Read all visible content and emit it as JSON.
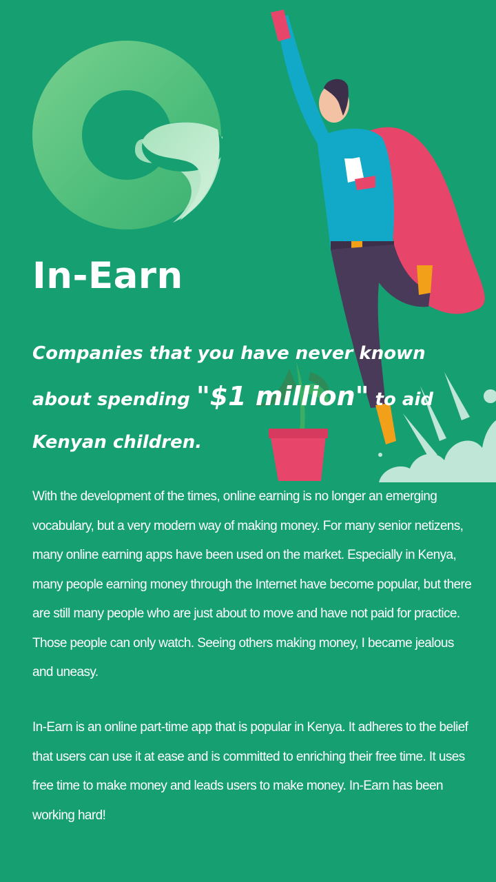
{
  "brand": {
    "name": "In-Earn",
    "colors": {
      "background": "#169f71",
      "logo_dark": "#56c47e",
      "logo_light": "#bfeccf",
      "cape": "#e8456b",
      "shirt": "#12a9c9",
      "pants": "#4a3a5a"
    }
  },
  "headline": {
    "part1": "Companies that you have never known about spending ",
    "highlight": "\"$1 million\"",
    "part2": " to aid Kenyan children."
  },
  "body": {
    "paragraph1": "With the development of the times, online earning is no longer an emerging vocabulary, but a very modern way of making money. For many senior netizens, many online earning apps have been used on the market. Especially in Kenya, many people earning money through the Internet have become popular, but there are still many people who are just about to move and have not paid for practice. Those people can only watch. Seeing others making money, I became jealous and uneasy.",
    "paragraph2": "In-Earn is an online part-time app that is popular in Kenya. It adheres to the belief that users can use it at ease and is committed to enriching their free time. It uses free time to make money and leads users to make money. In-Earn has been working hard!"
  },
  "icons": {
    "logo": "in-earn-logo-icon",
    "hero": "flying-superhero-illustration",
    "plant": "potted-plant-icon"
  }
}
